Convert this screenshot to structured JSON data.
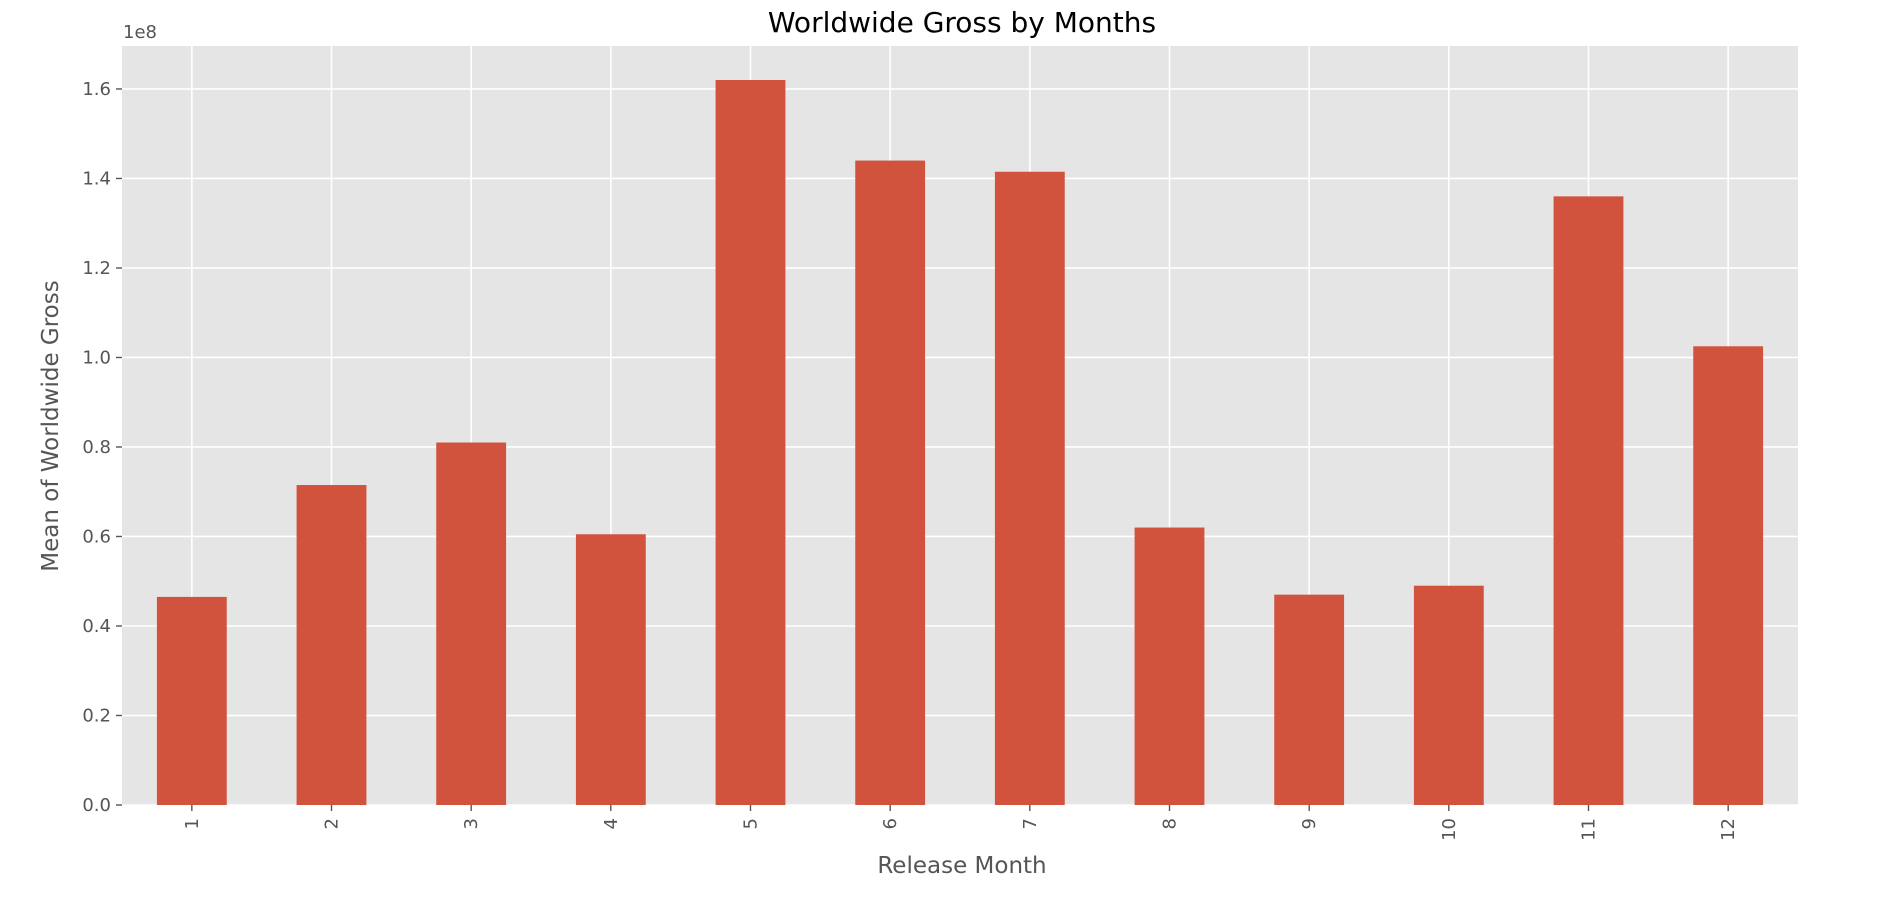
{
  "chart_data": {
    "type": "bar",
    "title": "Worldwide Gross by Months",
    "xlabel": "Release Month",
    "ylabel": "Mean of Worldwide Gross",
    "y_offset_label": "1e8",
    "categories": [
      "1",
      "2",
      "3",
      "4",
      "5",
      "6",
      "7",
      "8",
      "9",
      "10",
      "11",
      "12"
    ],
    "values": [
      46500000,
      71500000,
      81000000,
      60500000,
      162000000,
      144000000,
      141500000,
      62000000,
      47000000,
      49000000,
      136000000,
      102500000
    ],
    "ylim": [
      0,
      169600000
    ],
    "yticks": [
      0,
      20000000,
      40000000,
      60000000,
      80000000,
      100000000,
      120000000,
      140000000,
      160000000
    ],
    "ytick_labels": [
      "0.0",
      "0.2",
      "0.4",
      "0.6",
      "0.8",
      "1.0",
      "1.2",
      "1.4",
      "1.6"
    ],
    "grid": true,
    "legend": "none",
    "colors": {
      "bar": "#d1533e",
      "plot_bg": "#e5e5e5",
      "grid": "#ffffff"
    }
  }
}
